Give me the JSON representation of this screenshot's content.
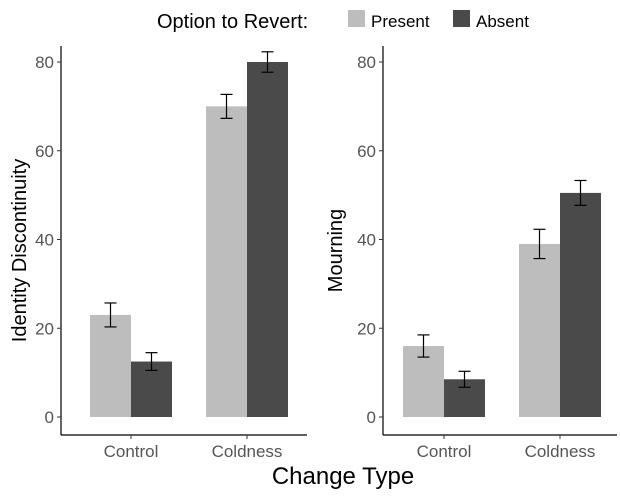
{
  "legend": {
    "title": "Option to Revert:",
    "items": [
      {
        "label": "Present",
        "color": "#bdbdbd"
      },
      {
        "label": "Absent",
        "color": "#4a4a4a"
      }
    ]
  },
  "xlabel": "Change Type",
  "chart_data": [
    {
      "type": "bar",
      "ylabel": "Identity Discontinuity",
      "categories": [
        "Control",
        "Coldness"
      ],
      "series": [
        {
          "name": "Present",
          "color": "#bdbdbd",
          "values": [
            23,
            70
          ],
          "error": [
            2.7,
            2.7
          ]
        },
        {
          "name": "Absent",
          "color": "#4a4a4a",
          "values": [
            12.5,
            80
          ],
          "error": [
            2.0,
            2.3
          ]
        }
      ],
      "ylim": [
        0,
        84
      ],
      "yticks": [
        0,
        20,
        40,
        60,
        80
      ],
      "grid": false
    },
    {
      "type": "bar",
      "ylabel": "Mourning",
      "categories": [
        "Control",
        "Coldness"
      ],
      "series": [
        {
          "name": "Present",
          "color": "#bdbdbd",
          "values": [
            16,
            39
          ],
          "error": [
            2.5,
            3.3
          ]
        },
        {
          "name": "Absent",
          "color": "#4a4a4a",
          "values": [
            8.5,
            50.5
          ],
          "error": [
            1.8,
            2.8
          ]
        }
      ],
      "ylim": [
        0,
        84
      ],
      "yticks": [
        0,
        20,
        40,
        60,
        80
      ],
      "grid": false
    }
  ]
}
